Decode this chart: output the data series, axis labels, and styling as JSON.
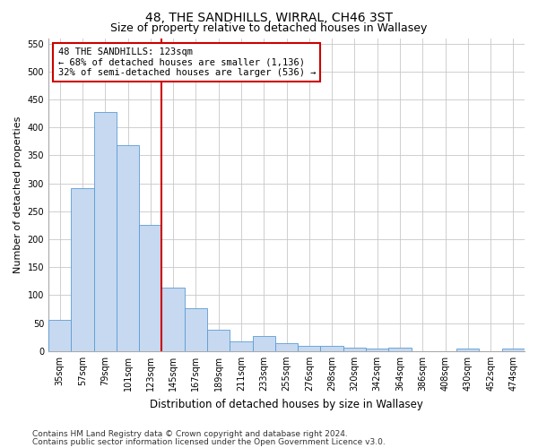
{
  "title": "48, THE SANDHILLS, WIRRAL, CH46 3ST",
  "subtitle": "Size of property relative to detached houses in Wallasey",
  "xlabel": "Distribution of detached houses by size in Wallasey",
  "ylabel": "Number of detached properties",
  "categories": [
    "35sqm",
    "57sqm",
    "79sqm",
    "101sqm",
    "123sqm",
    "145sqm",
    "167sqm",
    "189sqm",
    "211sqm",
    "233sqm",
    "255sqm",
    "276sqm",
    "298sqm",
    "320sqm",
    "342sqm",
    "364sqm",
    "386sqm",
    "408sqm",
    "430sqm",
    "452sqm",
    "474sqm"
  ],
  "values": [
    55,
    292,
    428,
    368,
    225,
    113,
    76,
    38,
    18,
    27,
    14,
    10,
    10,
    6,
    5,
    6,
    0,
    0,
    5,
    0,
    5
  ],
  "bar_color": "#c6d9f0",
  "bar_edge_color": "#5b9bd5",
  "vline_index": 4,
  "vline_color": "#cc0000",
  "annotation_line1": "48 THE SANDHILLS: 123sqm",
  "annotation_line2": "← 68% of detached houses are smaller (1,136)",
  "annotation_line3": "32% of semi-detached houses are larger (536) →",
  "annotation_box_color": "#ffffff",
  "annotation_box_edge": "#cc0000",
  "ylim": [
    0,
    560
  ],
  "yticks": [
    0,
    50,
    100,
    150,
    200,
    250,
    300,
    350,
    400,
    450,
    500,
    550
  ],
  "footer1": "Contains HM Land Registry data © Crown copyright and database right 2024.",
  "footer2": "Contains public sector information licensed under the Open Government Licence v3.0.",
  "bg_color": "#ffffff",
  "grid_color": "#c8c8c8",
  "title_fontsize": 10,
  "subtitle_fontsize": 9,
  "tick_fontsize": 7,
  "ylabel_fontsize": 8,
  "xlabel_fontsize": 8.5,
  "annotation_fontsize": 7.5,
  "footer_fontsize": 6.5
}
